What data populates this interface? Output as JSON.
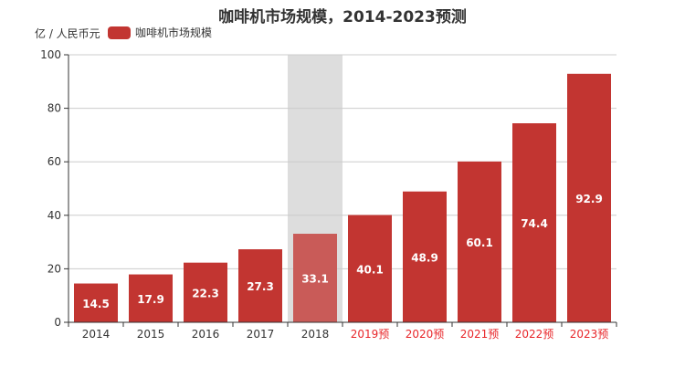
{
  "chart_data": {
    "type": "bar",
    "title": "咖啡机市场规模，2014-2023预测",
    "ylabel": "亿 / 人民币元",
    "xlabel": "",
    "categories": [
      "2014",
      "2015",
      "2016",
      "2017",
      "2018",
      "2019预",
      "2020预",
      "2021预",
      "2022预",
      "2023预"
    ],
    "forecast_categories": [
      "2019预",
      "2020预",
      "2021预",
      "2022预",
      "2023预"
    ],
    "highlighted_category": "2018",
    "series": [
      {
        "name": "咖啡机市场规模",
        "values": [
          14.5,
          17.9,
          22.3,
          27.3,
          33.1,
          40.1,
          48.9,
          60.1,
          74.4,
          92.9
        ]
      }
    ],
    "ylim": [
      0,
      100
    ],
    "yticks": [
      0,
      20,
      40,
      60,
      80,
      100
    ],
    "grid": true,
    "legend_position": "top-left",
    "colors": {
      "bar": "#c23531",
      "bar_highlighted": "#c95b58",
      "highlight_band": "#dddddd",
      "forecast_tick": "#e8262a",
      "axis": "#333333",
      "grid": "#cccccc",
      "data_label": "#ffffff"
    }
  }
}
